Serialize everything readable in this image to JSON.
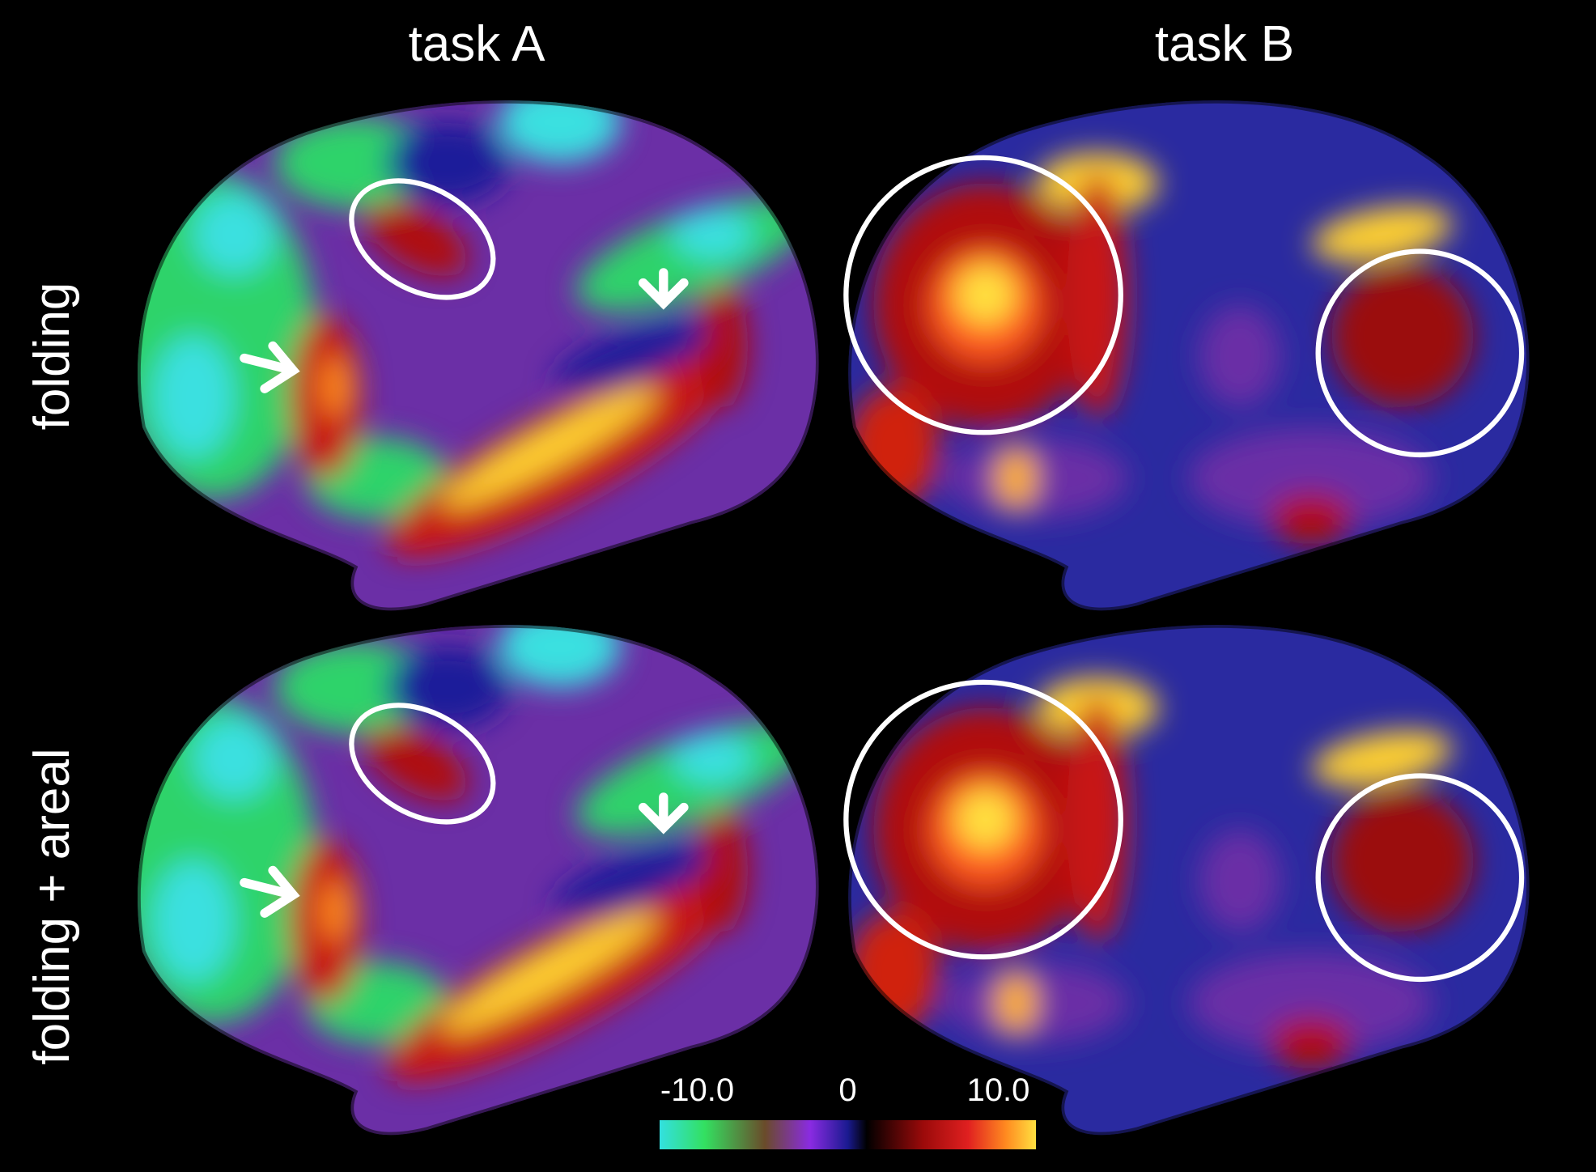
{
  "column_titles": [
    "task A",
    "task B"
  ],
  "row_labels": [
    "folding",
    "folding + areal"
  ],
  "colorbar": {
    "lim": [
      -12.5,
      12.5
    ],
    "ticks": [
      {
        "value": -10,
        "label": "-10.0"
      },
      0,
      {
        "value": 10,
        "label": "10.0"
      }
    ]
  }
}
